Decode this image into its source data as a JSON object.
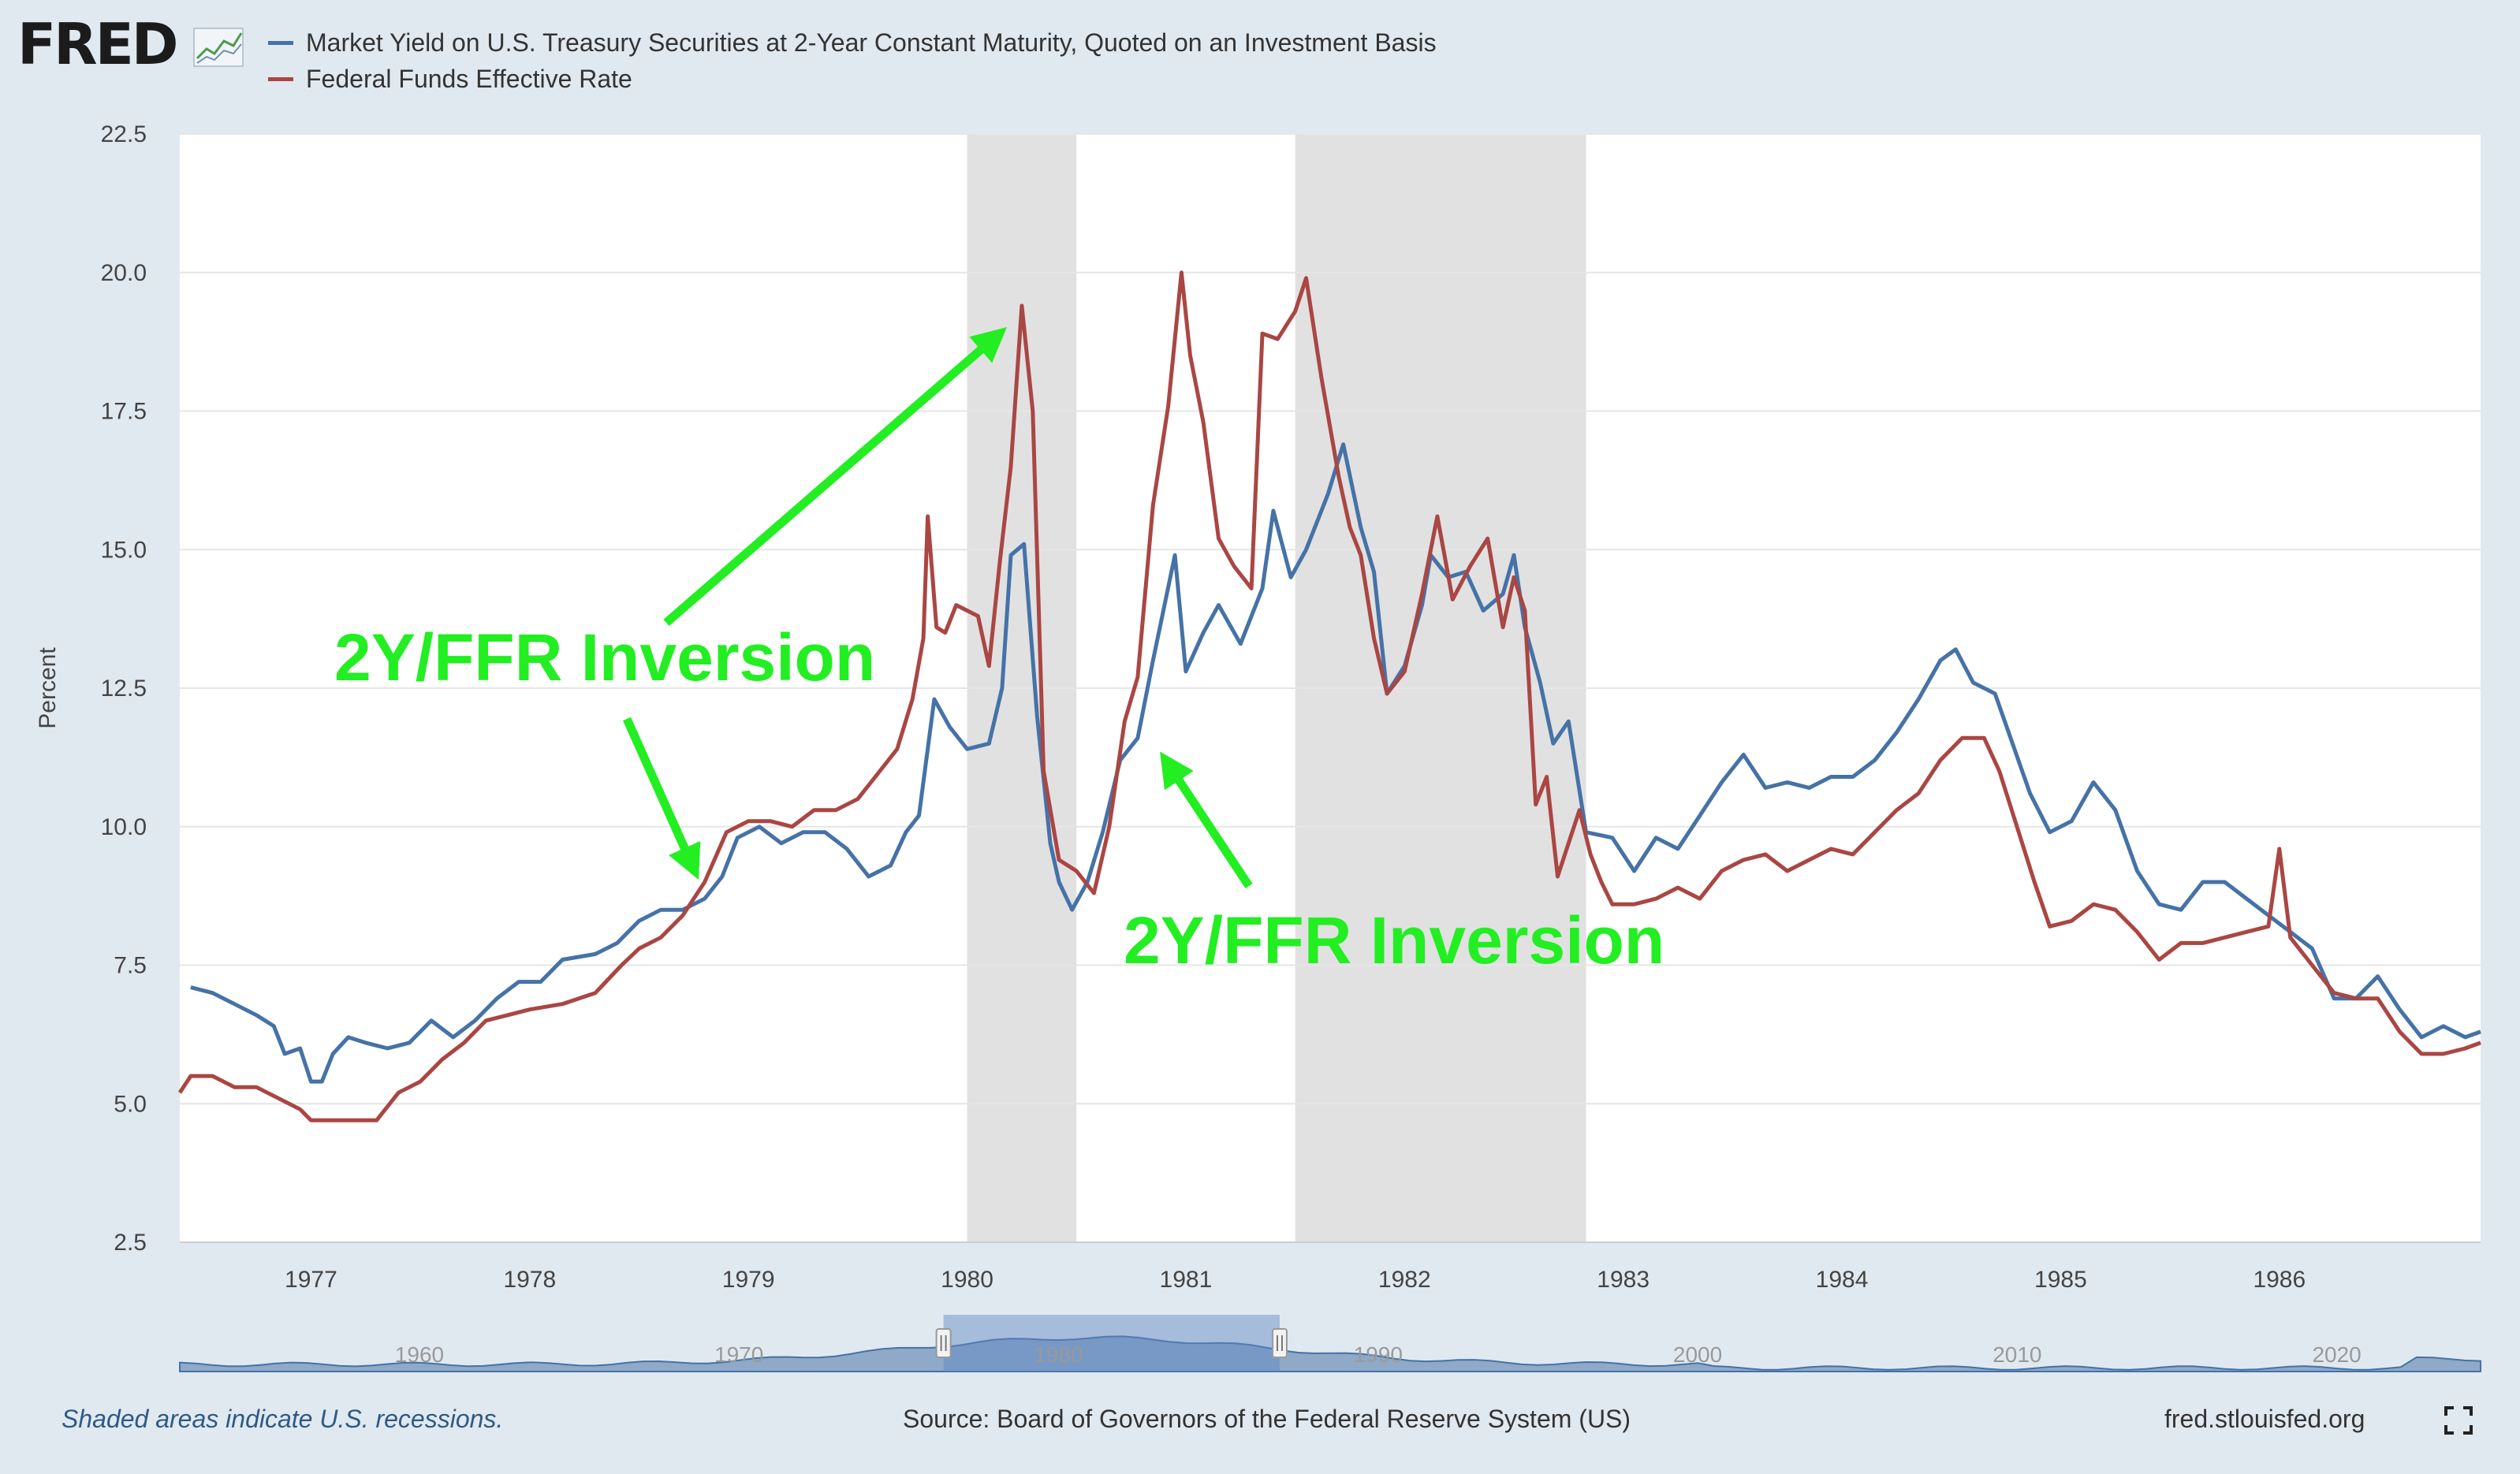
{
  "header": {
    "logo_text": "FRED",
    "logo_icon": "line-chart-icon"
  },
  "legend": [
    {
      "label": "Market Yield on U.S. Treasury Securities at 2-Year Constant Maturity, Quoted on an Investment Basis",
      "color": "#4572a7"
    },
    {
      "label": "Federal Funds Effective Rate",
      "color": "#aa4643"
    }
  ],
  "chart_data": {
    "type": "line",
    "ylabel": "Percent",
    "ylim": [
      2.5,
      22.5
    ],
    "yticks": [
      "2.5",
      "5.0",
      "7.5",
      "10.0",
      "12.5",
      "15.0",
      "17.5",
      "20.0",
      "22.5"
    ],
    "xlim": [
      1976.4,
      1986.92
    ],
    "xticks": [
      "1977",
      "1978",
      "1979",
      "1980",
      "1981",
      "1982",
      "1983",
      "1984",
      "1985",
      "1986"
    ],
    "recessions": [
      [
        1980.0,
        1980.5
      ],
      [
        1981.5,
        1982.83
      ]
    ],
    "series": [
      {
        "name": "Market Yield on U.S. Treasury Securities at 2-Year Constant Maturity, Quoted on an Investment Basis",
        "color": "#4572a7",
        "points": [
          [
            1976.45,
            7.1
          ],
          [
            1976.55,
            7.0
          ],
          [
            1976.65,
            6.8
          ],
          [
            1976.75,
            6.6
          ],
          [
            1976.83,
            6.4
          ],
          [
            1976.88,
            5.9
          ],
          [
            1976.95,
            6.0
          ],
          [
            1977.0,
            5.4
          ],
          [
            1977.05,
            5.4
          ],
          [
            1977.1,
            5.9
          ],
          [
            1977.17,
            6.2
          ],
          [
            1977.25,
            6.1
          ],
          [
            1977.35,
            6.0
          ],
          [
            1977.45,
            6.1
          ],
          [
            1977.55,
            6.5
          ],
          [
            1977.65,
            6.2
          ],
          [
            1977.75,
            6.5
          ],
          [
            1977.85,
            6.9
          ],
          [
            1977.95,
            7.2
          ],
          [
            1978.05,
            7.2
          ],
          [
            1978.15,
            7.6
          ],
          [
            1978.3,
            7.7
          ],
          [
            1978.4,
            7.9
          ],
          [
            1978.5,
            8.3
          ],
          [
            1978.6,
            8.5
          ],
          [
            1978.7,
            8.5
          ],
          [
            1978.8,
            8.7
          ],
          [
            1978.88,
            9.1
          ],
          [
            1978.95,
            9.8
          ],
          [
            1979.05,
            10.0
          ],
          [
            1979.15,
            9.7
          ],
          [
            1979.25,
            9.9
          ],
          [
            1979.35,
            9.9
          ],
          [
            1979.45,
            9.6
          ],
          [
            1979.55,
            9.1
          ],
          [
            1979.65,
            9.3
          ],
          [
            1979.72,
            9.9
          ],
          [
            1979.78,
            10.2
          ],
          [
            1979.85,
            12.3
          ],
          [
            1979.92,
            11.8
          ],
          [
            1980.0,
            11.4
          ],
          [
            1980.1,
            11.5
          ],
          [
            1980.16,
            12.5
          ],
          [
            1980.2,
            14.9
          ],
          [
            1980.26,
            15.1
          ],
          [
            1980.32,
            12.0
          ],
          [
            1980.38,
            9.7
          ],
          [
            1980.42,
            9.0
          ],
          [
            1980.48,
            8.5
          ],
          [
            1980.55,
            9.0
          ],
          [
            1980.62,
            9.9
          ],
          [
            1980.7,
            11.2
          ],
          [
            1980.78,
            11.6
          ],
          [
            1980.85,
            13.0
          ],
          [
            1980.95,
            14.9
          ],
          [
            1981.0,
            12.8
          ],
          [
            1981.08,
            13.5
          ],
          [
            1981.15,
            14.0
          ],
          [
            1981.25,
            13.3
          ],
          [
            1981.35,
            14.3
          ],
          [
            1981.4,
            15.7
          ],
          [
            1981.48,
            14.5
          ],
          [
            1981.55,
            15.0
          ],
          [
            1981.65,
            16.0
          ],
          [
            1981.72,
            16.9
          ],
          [
            1981.8,
            15.4
          ],
          [
            1981.86,
            14.6
          ],
          [
            1981.92,
            12.4
          ],
          [
            1982.0,
            12.9
          ],
          [
            1982.08,
            14.0
          ],
          [
            1982.12,
            14.9
          ],
          [
            1982.2,
            14.5
          ],
          [
            1982.28,
            14.6
          ],
          [
            1982.36,
            13.9
          ],
          [
            1982.45,
            14.2
          ],
          [
            1982.5,
            14.9
          ],
          [
            1982.55,
            13.6
          ],
          [
            1982.62,
            12.6
          ],
          [
            1982.68,
            11.5
          ],
          [
            1982.75,
            11.9
          ],
          [
            1982.83,
            9.9
          ],
          [
            1982.95,
            9.8
          ],
          [
            1983.05,
            9.2
          ],
          [
            1983.15,
            9.8
          ],
          [
            1983.25,
            9.6
          ],
          [
            1983.35,
            10.2
          ],
          [
            1983.45,
            10.8
          ],
          [
            1983.55,
            11.3
          ],
          [
            1983.65,
            10.7
          ],
          [
            1983.75,
            10.8
          ],
          [
            1983.85,
            10.7
          ],
          [
            1983.95,
            10.9
          ],
          [
            1984.05,
            10.9
          ],
          [
            1984.15,
            11.2
          ],
          [
            1984.25,
            11.7
          ],
          [
            1984.35,
            12.3
          ],
          [
            1984.45,
            13.0
          ],
          [
            1984.52,
            13.2
          ],
          [
            1984.6,
            12.6
          ],
          [
            1984.7,
            12.4
          ],
          [
            1984.78,
            11.5
          ],
          [
            1984.86,
            10.6
          ],
          [
            1984.95,
            9.9
          ],
          [
            1985.05,
            10.1
          ],
          [
            1985.15,
            10.8
          ],
          [
            1985.25,
            10.3
          ],
          [
            1985.35,
            9.2
          ],
          [
            1985.45,
            8.6
          ],
          [
            1985.55,
            8.5
          ],
          [
            1985.65,
            9.0
          ],
          [
            1985.75,
            9.0
          ],
          [
            1985.85,
            8.7
          ],
          [
            1985.95,
            8.4
          ],
          [
            1986.05,
            8.1
          ],
          [
            1986.15,
            7.8
          ],
          [
            1986.25,
            6.9
          ],
          [
            1986.35,
            6.9
          ],
          [
            1986.45,
            7.3
          ],
          [
            1986.55,
            6.7
          ],
          [
            1986.65,
            6.2
          ],
          [
            1986.75,
            6.4
          ],
          [
            1986.85,
            6.2
          ],
          [
            1986.92,
            6.3
          ]
        ]
      },
      {
        "name": "Federal Funds Effective Rate",
        "color": "#aa4643",
        "points": [
          [
            1976.4,
            5.2
          ],
          [
            1976.45,
            5.5
          ],
          [
            1976.55,
            5.5
          ],
          [
            1976.65,
            5.3
          ],
          [
            1976.75,
            5.3
          ],
          [
            1976.85,
            5.1
          ],
          [
            1976.95,
            4.9
          ],
          [
            1977.0,
            4.7
          ],
          [
            1977.1,
            4.7
          ],
          [
            1977.2,
            4.7
          ],
          [
            1977.3,
            4.7
          ],
          [
            1977.4,
            5.2
          ],
          [
            1977.5,
            5.4
          ],
          [
            1977.6,
            5.8
          ],
          [
            1977.7,
            6.1
          ],
          [
            1977.8,
            6.5
          ],
          [
            1977.9,
            6.6
          ],
          [
            1978.0,
            6.7
          ],
          [
            1978.15,
            6.8
          ],
          [
            1978.3,
            7.0
          ],
          [
            1978.42,
            7.5
          ],
          [
            1978.5,
            7.8
          ],
          [
            1978.6,
            8.0
          ],
          [
            1978.7,
            8.4
          ],
          [
            1978.8,
            9.0
          ],
          [
            1978.9,
            9.9
          ],
          [
            1979.0,
            10.1
          ],
          [
            1979.1,
            10.1
          ],
          [
            1979.2,
            10.0
          ],
          [
            1979.3,
            10.3
          ],
          [
            1979.4,
            10.3
          ],
          [
            1979.5,
            10.5
          ],
          [
            1979.58,
            10.9
          ],
          [
            1979.68,
            11.4
          ],
          [
            1979.75,
            12.3
          ],
          [
            1979.8,
            13.4
          ],
          [
            1979.82,
            15.6
          ],
          [
            1979.86,
            13.6
          ],
          [
            1979.9,
            13.5
          ],
          [
            1979.95,
            14.0
          ],
          [
            1980.05,
            13.8
          ],
          [
            1980.1,
            12.9
          ],
          [
            1980.15,
            14.8
          ],
          [
            1980.2,
            16.5
          ],
          [
            1980.25,
            19.4
          ],
          [
            1980.3,
            17.5
          ],
          [
            1980.35,
            11.0
          ],
          [
            1980.42,
            9.4
          ],
          [
            1980.5,
            9.2
          ],
          [
            1980.58,
            8.8
          ],
          [
            1980.65,
            10.0
          ],
          [
            1980.72,
            11.9
          ],
          [
            1980.78,
            12.7
          ],
          [
            1980.85,
            15.8
          ],
          [
            1980.92,
            17.6
          ],
          [
            1980.98,
            20.0
          ],
          [
            1981.02,
            18.5
          ],
          [
            1981.08,
            17.3
          ],
          [
            1981.15,
            15.2
          ],
          [
            1981.22,
            14.7
          ],
          [
            1981.3,
            14.3
          ],
          [
            1981.35,
            18.9
          ],
          [
            1981.42,
            18.8
          ],
          [
            1981.5,
            19.3
          ],
          [
            1981.55,
            19.9
          ],
          [
            1981.62,
            18.1
          ],
          [
            1981.7,
            16.3
          ],
          [
            1981.75,
            15.4
          ],
          [
            1981.8,
            14.9
          ],
          [
            1981.86,
            13.4
          ],
          [
            1981.92,
            12.4
          ],
          [
            1982.0,
            12.8
          ],
          [
            1982.08,
            14.2
          ],
          [
            1982.15,
            15.6
          ],
          [
            1982.22,
            14.1
          ],
          [
            1982.3,
            14.7
          ],
          [
            1982.38,
            15.2
          ],
          [
            1982.45,
            13.6
          ],
          [
            1982.5,
            14.5
          ],
          [
            1982.55,
            13.9
          ],
          [
            1982.6,
            10.4
          ],
          [
            1982.65,
            10.9
          ],
          [
            1982.7,
            9.1
          ],
          [
            1982.75,
            9.7
          ],
          [
            1982.8,
            10.3
          ],
          [
            1982.85,
            9.5
          ],
          [
            1982.9,
            9.0
          ],
          [
            1982.95,
            8.6
          ],
          [
            1983.05,
            8.6
          ],
          [
            1983.15,
            8.7
          ],
          [
            1983.25,
            8.9
          ],
          [
            1983.35,
            8.7
          ],
          [
            1983.45,
            9.2
          ],
          [
            1983.55,
            9.4
          ],
          [
            1983.65,
            9.5
          ],
          [
            1983.75,
            9.2
          ],
          [
            1983.85,
            9.4
          ],
          [
            1983.95,
            9.6
          ],
          [
            1984.05,
            9.5
          ],
          [
            1984.15,
            9.9
          ],
          [
            1984.25,
            10.3
          ],
          [
            1984.35,
            10.6
          ],
          [
            1984.45,
            11.2
          ],
          [
            1984.55,
            11.6
          ],
          [
            1984.65,
            11.6
          ],
          [
            1984.72,
            11.0
          ],
          [
            1984.8,
            10.0
          ],
          [
            1984.88,
            9.0
          ],
          [
            1984.95,
            8.2
          ],
          [
            1985.05,
            8.3
          ],
          [
            1985.15,
            8.6
          ],
          [
            1985.25,
            8.5
          ],
          [
            1985.35,
            8.1
          ],
          [
            1985.45,
            7.6
          ],
          [
            1985.55,
            7.9
          ],
          [
            1985.65,
            7.9
          ],
          [
            1985.75,
            8.0
          ],
          [
            1985.85,
            8.1
          ],
          [
            1985.95,
            8.2
          ],
          [
            1986.0,
            9.6
          ],
          [
            1986.05,
            8.0
          ],
          [
            1986.15,
            7.5
          ],
          [
            1986.25,
            7.0
          ],
          [
            1986.35,
            6.9
          ],
          [
            1986.45,
            6.9
          ],
          [
            1986.55,
            6.3
          ],
          [
            1986.65,
            5.9
          ],
          [
            1986.75,
            5.9
          ],
          [
            1986.85,
            6.0
          ],
          [
            1986.92,
            6.1
          ]
        ]
      }
    ],
    "annotations": [
      {
        "text": "2Y/FFR Inversion",
        "color": "#22ee22"
      },
      {
        "text": "2Y/FFR Inversion",
        "color": "#22ee22"
      }
    ]
  },
  "navigator": {
    "labels": [
      "1960",
      "1970",
      "1980",
      "1990",
      "2000",
      "2010",
      "2020"
    ],
    "range": [
      1976.4,
      1986.92
    ],
    "span": [
      1952.5,
      2024.5
    ]
  },
  "footer": {
    "note": "Shaded areas indicate U.S. recessions.",
    "source": "Source: Board of Governors of the Federal Reserve System (US)",
    "url": "fred.stlouisfed.org",
    "fullscreen_icon": "fullscreen-icon"
  }
}
